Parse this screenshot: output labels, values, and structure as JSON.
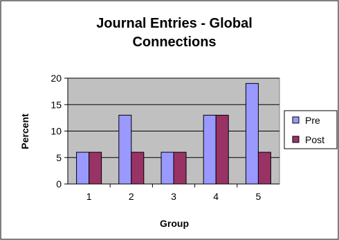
{
  "chart_data": {
    "type": "bar",
    "title_lines": [
      "Journal Entries - Global",
      "Connections"
    ],
    "xlabel": "Group",
    "ylabel": "Percent",
    "categories": [
      "1",
      "2",
      "3",
      "4",
      "5"
    ],
    "series": [
      {
        "name": "Pre",
        "values": [
          6,
          13,
          6,
          13,
          19
        ],
        "color": "#9999ff"
      },
      {
        "name": "Post",
        "values": [
          6,
          6,
          6,
          13,
          6
        ],
        "color": "#993366"
      }
    ],
    "ylim": [
      0,
      20
    ],
    "yticks": [
      0,
      5,
      10,
      15,
      20
    ],
    "grid": true,
    "plot_background": "#c0c0c0",
    "legend_position": "right"
  }
}
